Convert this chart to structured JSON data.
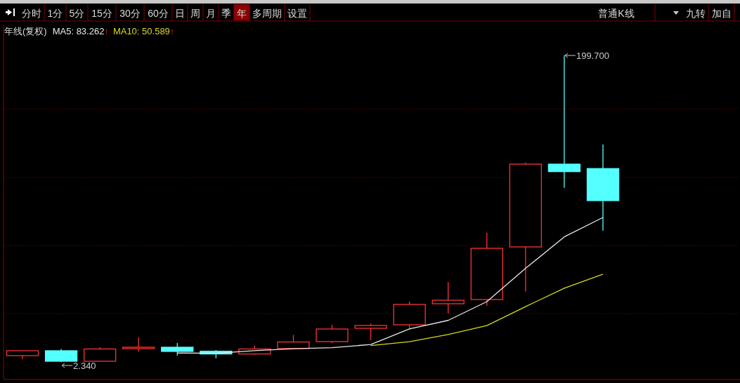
{
  "chart_data": {
    "type": "candlestick",
    "title": "年线(复权)",
    "categories": [
      null,
      null,
      null,
      null,
      null,
      null,
      null,
      null,
      null,
      null,
      null,
      null,
      null,
      null,
      null,
      null
    ],
    "ohlc": [
      [
        6.41,
        9.79,
        4.15,
        9.57
      ],
      [
        9.57,
        10.7,
        2.34,
        2.8
      ],
      [
        2.8,
        11.83,
        2.6,
        10.7
      ],
      [
        10.92,
        18.15,
        9.12,
        11.83
      ],
      [
        11.83,
        14.54,
        6.41,
        9.12
      ],
      [
        9.25,
        10.02,
        4.73,
        7.49
      ],
      [
        7.49,
        12.73,
        6.99,
        10.7
      ],
      [
        11.01,
        19.73,
        11.01,
        15.21
      ],
      [
        15.44,
        26.33,
        14.54,
        23.57
      ],
      [
        24.02,
        27.0,
        16.52,
        25.83
      ],
      [
        26.28,
        41.19,
        23.71,
        39.38
      ],
      [
        39.83,
        53.83,
        33.64,
        42.09
      ],
      [
        42.54,
        85.59,
        38.61,
        75.52
      ],
      [
        76.42,
        130.76,
        47.65,
        129.72
      ],
      [
        129.72,
        199.7,
        114.5,
        124.89
      ],
      [
        126.87,
        142.37,
        86.94,
        106.23
      ]
    ],
    "colors": [
      "#ff3232",
      "#54ffff",
      "#ff3232",
      "#ff3232",
      "#54ffff",
      "#54ffff",
      "#ff3232",
      "#ff3232",
      "#ff3232",
      "#ff3232",
      "#ff3232",
      "#ff3232",
      "#ff3232",
      "#ff3232",
      "#54ffff",
      "#54ffff"
    ],
    "series": [
      {
        "name": "MA5: 83.262↑",
        "type": "line",
        "color": "#e8e8e8",
        "values": [
          null,
          null,
          null,
          null,
          8.1,
          7.9,
          9.6,
          10.9,
          11.5,
          13.6,
          23.6,
          29.1,
          41.2,
          62.6,
          82.9,
          95.4
        ]
      },
      {
        "name": "MA10: 50.589↑",
        "type": "line",
        "color": "#d8d820",
        "values": [
          null,
          null,
          null,
          null,
          null,
          null,
          null,
          null,
          null,
          12.9,
          15.4,
          20.0,
          25.8,
          38.0,
          49.8,
          58.9
        ]
      }
    ],
    "ylim": [
      -8.5,
      219.6
    ],
    "yticks": [
      {
        "value": 33.5,
        "label": null
      },
      {
        "value": 77.3,
        "label": null
      },
      {
        "value": 121.1,
        "label": null
      },
      {
        "value": 165.4,
        "label": null
      }
    ],
    "grid": "y",
    "legend": "top left",
    "annotations": [
      "199.700",
      "2.340",
      "分时",
      "1分",
      "5分",
      "15分",
      "30分",
      "60分",
      "日",
      "周",
      "月",
      "季",
      "年",
      "多周期",
      "设置",
      "普通K线",
      "九转",
      "加自"
    ]
  }
}
